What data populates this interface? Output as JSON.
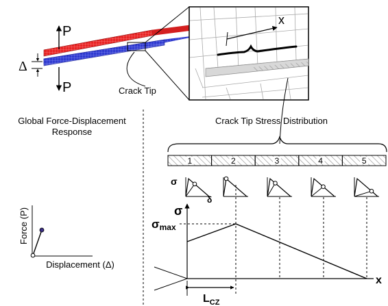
{
  "specimen": {
    "load_label_top": "P",
    "load_label_bottom": "P",
    "opening_label": "Δ",
    "crack_tip_label": "Crack Tip",
    "upper_arm_color": "#e21b1b",
    "lower_arm_color": "#2a34c8"
  },
  "zoom": {
    "axis_label": "x"
  },
  "left_panel": {
    "title_line1": "Global Force-Displacement",
    "title_line2": "Response",
    "y_axis_label": "Force (P)",
    "x_axis_label": "Displacement (Δ)"
  },
  "right_panel": {
    "title": "Crack Tip Stress Distribution",
    "elements": [
      "1",
      "2",
      "3",
      "4",
      "5"
    ],
    "traction_sigma_label": "σ",
    "traction_delta_label": "δ",
    "stress_axis_label": "σ",
    "sigma_max_base": "σ",
    "sigma_max_sub": "max",
    "x_axis_label": "x",
    "lcz_base": "L",
    "lcz_sub": "CZ"
  },
  "colors": {
    "hatch": "#9a9a9a",
    "line": "#000000"
  }
}
